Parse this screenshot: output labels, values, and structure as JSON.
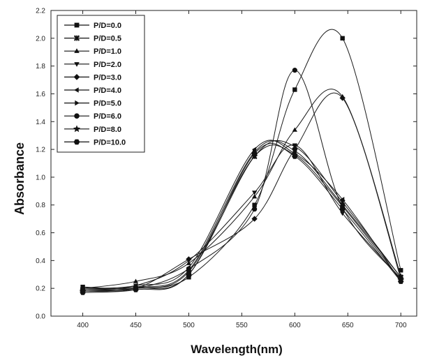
{
  "chart_data": {
    "type": "line",
    "xlabel": "Wavelength(nm)",
    "ylabel": "Absorbance",
    "xlim": [
      370,
      715
    ],
    "ylim": [
      0.0,
      2.2
    ],
    "x_ticks": [
      400,
      450,
      500,
      550,
      600,
      650,
      700
    ],
    "y_ticks": [
      0.0,
      0.2,
      0.4,
      0.6,
      0.8,
      1.0,
      1.2,
      1.4,
      1.6,
      1.8,
      2.0,
      2.2
    ],
    "x_tick_labels": [
      "400",
      "450",
      "500",
      "550",
      "600",
      "650",
      "700"
    ],
    "y_tick_labels": [
      "0.0",
      "0.2",
      "0.4",
      "0.6",
      "0.8",
      "1.0",
      "1.2",
      "1.4",
      "1.6",
      "1.8",
      "2.0",
      "2.2"
    ],
    "legend_position": "top-left",
    "grid": false,
    "x": [
      400,
      450,
      500,
      562,
      600,
      645,
      700
    ],
    "series": [
      {
        "name": "P/D=0.0",
        "marker": "square",
        "values": [
          0.21,
          0.2,
          0.28,
          0.8,
          1.63,
          2.0,
          0.33
        ]
      },
      {
        "name": "P/D=0.5",
        "marker": "cross",
        "values": [
          0.19,
          0.2,
          0.3,
          1.15,
          1.22,
          0.82,
          0.28
        ]
      },
      {
        "name": "P/D=1.0",
        "marker": "triangle-up",
        "values": [
          0.2,
          0.25,
          0.38,
          0.86,
          1.34,
          1.58,
          0.29
        ]
      },
      {
        "name": "P/D=2.0",
        "marker": "triangle-down",
        "values": [
          0.19,
          0.22,
          0.4,
          0.89,
          1.23,
          0.74,
          0.27
        ]
      },
      {
        "name": "P/D=3.0",
        "marker": "diamond",
        "values": [
          0.18,
          0.2,
          0.41,
          0.7,
          1.2,
          1.57,
          0.27
        ]
      },
      {
        "name": "P/D=4.0",
        "marker": "triangle-left",
        "values": [
          0.2,
          0.22,
          0.35,
          1.2,
          1.17,
          0.84,
          0.25
        ]
      },
      {
        "name": "P/D=5.0",
        "marker": "triangle-right",
        "values": [
          0.2,
          0.21,
          0.33,
          1.18,
          1.19,
          0.8,
          0.28
        ]
      },
      {
        "name": "P/D=6.0",
        "marker": "circle",
        "values": [
          0.19,
          0.2,
          0.34,
          0.77,
          1.77,
          0.78,
          0.27
        ]
      },
      {
        "name": "P/D=8.0",
        "marker": "star",
        "values": [
          0.18,
          0.2,
          0.32,
          1.15,
          1.16,
          0.79,
          0.26
        ]
      },
      {
        "name": "P/D=10.0",
        "marker": "hexagon",
        "values": [
          0.17,
          0.19,
          0.3,
          1.17,
          1.15,
          0.77,
          0.25
        ]
      }
    ]
  }
}
